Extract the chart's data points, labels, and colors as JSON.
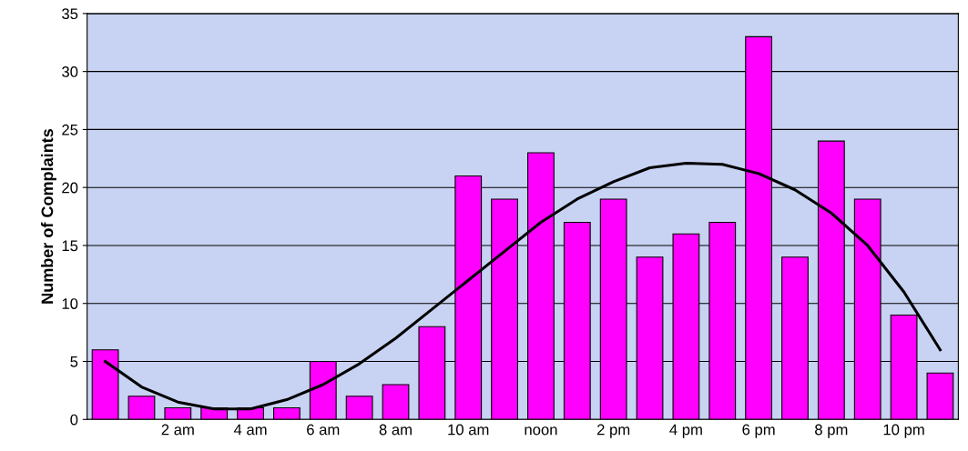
{
  "chart_data": {
    "type": "bar",
    "ylabel": "Number of Complaints",
    "categories": [
      null,
      null,
      "2 am",
      null,
      "4 am",
      null,
      "6 am",
      null,
      "8 am",
      null,
      "10 am",
      null,
      "noon",
      null,
      "2 pm",
      null,
      "4 pm",
      null,
      "6 pm",
      null,
      "8 pm",
      null,
      "10 pm",
      null
    ],
    "series": [
      {
        "color": "#ff00ff",
        "values": [
          6,
          2,
          1,
          1,
          1,
          1,
          5,
          2,
          3,
          8,
          21,
          19,
          23,
          17,
          19,
          14,
          16,
          17,
          33,
          14,
          24,
          19,
          9,
          4
        ]
      },
      {
        "type": "line",
        "color": "#000000",
        "values": [
          5,
          2.8,
          1.5,
          0.9,
          0.9,
          1.7,
          3,
          4.8,
          7,
          9.5,
          12,
          14.5,
          17,
          19,
          20.5,
          21.7,
          22.1,
          22,
          21.2,
          19.8,
          17.8,
          15,
          11,
          6
        ]
      }
    ],
    "ylim": [
      0,
      35
    ],
    "yticks": [
      0,
      5,
      10,
      15,
      20,
      25,
      30,
      35
    ],
    "grid": "y"
  }
}
